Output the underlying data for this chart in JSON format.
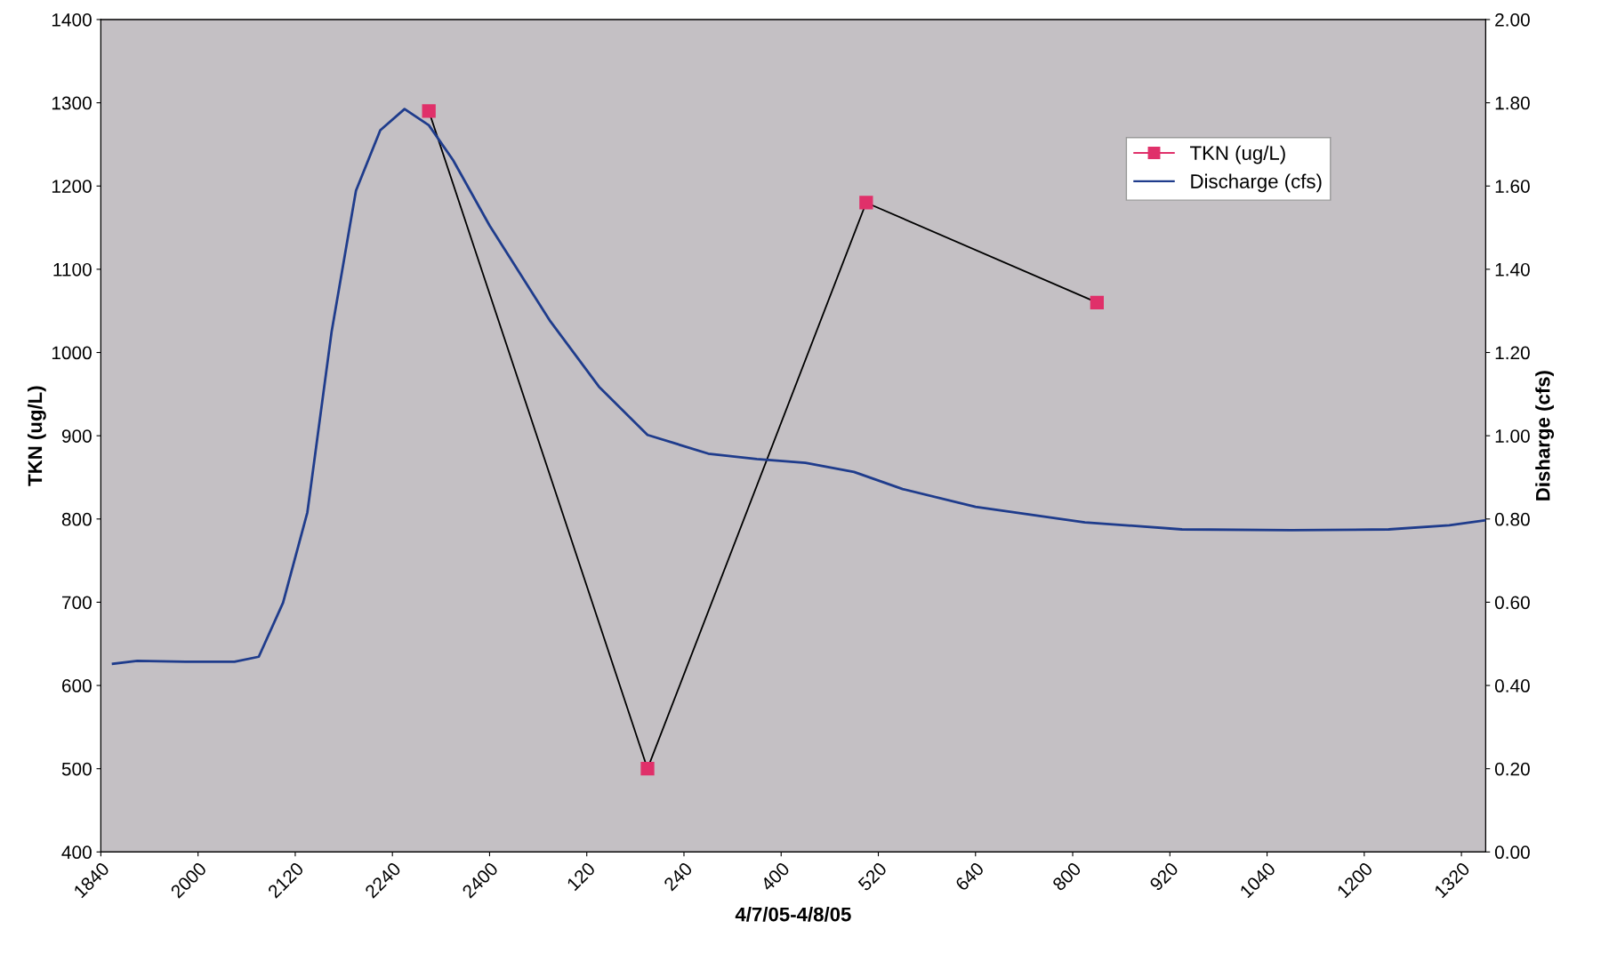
{
  "chart_data": {
    "type": "line",
    "xlabel": "4/7/05-4/8/05",
    "ylabel": "TKN (ug/L)",
    "y2label": "Disharge (cfs)",
    "categories": [
      "1840",
      null,
      null,
      null,
      null,
      null,
      null,
      null,
      "2000",
      null,
      null,
      null,
      null,
      null,
      null,
      null,
      "2120",
      null,
      null,
      null,
      null,
      null,
      null,
      null,
      "2240",
      null,
      null,
      null,
      null,
      null,
      null,
      null,
      "2400",
      null,
      null,
      null,
      null,
      null,
      null,
      null,
      "120",
      null,
      null,
      null,
      null,
      null,
      null,
      null,
      "240",
      null,
      null,
      null,
      null,
      null,
      null,
      null,
      "400",
      null,
      null,
      null,
      null,
      null,
      null,
      null,
      "520",
      null,
      null,
      null,
      null,
      null,
      null,
      null,
      "640",
      null,
      null,
      null,
      null,
      null,
      null,
      null,
      "800",
      null,
      null,
      null,
      null,
      null,
      null,
      null,
      "920",
      null,
      null,
      null,
      null,
      null,
      null,
      null,
      "1040",
      null,
      null,
      null,
      null,
      null,
      null,
      null,
      "1200",
      null,
      null,
      null,
      null,
      null,
      null,
      null,
      "1320",
      null,
      null
    ],
    "ylim": [
      400,
      1400
    ],
    "yticks": [
      400,
      500,
      600,
      700,
      800,
      900,
      1000,
      1100,
      1200,
      1300,
      1400
    ],
    "y2lim": [
      0,
      2
    ],
    "y2ticks": [
      {
        "value": 0,
        "label": "0.00"
      },
      {
        "value": 0.2,
        "label": "0.20"
      },
      {
        "value": 0.4,
        "label": "0.40"
      },
      {
        "value": 0.6,
        "label": "0.60"
      },
      {
        "value": 0.8,
        "label": "0.80"
      },
      {
        "value": 1.0,
        "label": "1.00"
      },
      {
        "value": 1.2,
        "label": "1.20"
      },
      {
        "value": 1.4,
        "label": "1.40"
      },
      {
        "value": 1.6,
        "label": "1.60"
      },
      {
        "value": 1.8,
        "label": "1.80"
      },
      {
        "value": 2.0,
        "label": "2.00"
      }
    ],
    "grid": false,
    "legend": "top right",
    "series": [
      {
        "name": "TKN (ug/L)",
        "color": "#e0306a",
        "marker": "square",
        "values": [
          null,
          null,
          null,
          null,
          null,
          null,
          null,
          null,
          null,
          null,
          null,
          null,
          null,
          null,
          null,
          null,
          null,
          null,
          null,
          null,
          null,
          null,
          null,
          null,
          null,
          null,
          null,
          1290,
          null,
          null,
          null,
          null,
          null,
          null,
          null,
          null,
          null,
          null,
          null,
          null,
          null,
          null,
          null,
          null,
          null,
          500,
          null,
          null,
          null,
          null,
          null,
          null,
          null,
          null,
          null,
          null,
          null,
          null,
          null,
          null,
          null,
          null,
          null,
          1180,
          null,
          null,
          null,
          null,
          null,
          null,
          null,
          null,
          null,
          null,
          null,
          null,
          null,
          null,
          null,
          null,
          null,
          null,
          1060,
          null,
          null,
          null,
          null,
          null,
          null,
          null,
          null,
          null,
          null,
          null,
          null,
          null,
          null,
          null,
          null,
          null,
          null,
          null,
          null,
          null,
          null,
          null,
          null,
          null,
          null,
          null,
          null,
          null,
          null,
          null,
          null
        ]
      },
      {
        "name": "Discharge (cfs)",
        "color": "#1f3c8c",
        "marker": "none",
        "axis": "y2",
        "values": [
          null,
          0.452,
          null,
          0.459,
          null,
          null,
          null,
          0.457,
          null,
          null,
          null,
          0.457,
          null,
          0.469,
          null,
          0.599,
          null,
          0.816,
          null,
          1.251,
          null,
          1.589,
          null,
          1.734,
          null,
          1.785,
          null,
          1.746,
          null,
          1.662,
          null,
          null,
          1.505,
          null,
          null,
          null,
          null,
          1.275,
          null,
          null,
          null,
          1.118,
          null,
          null,
          null,
          1.002,
          null,
          null,
          null,
          null,
          0.957,
          null,
          null,
          null,
          0.944,
          null,
          null,
          null,
          0.935,
          null,
          null,
          null,
          0.913,
          null,
          null,
          null,
          0.872,
          null,
          null,
          null,
          null,
          null,
          0.829,
          null,
          null,
          null,
          null,
          null,
          null,
          null,
          null,
          0.792,
          null,
          null,
          null,
          null,
          null,
          null,
          null,
          0.775,
          null,
          null,
          null,
          null,
          null,
          null,
          null,
          null,
          0.773,
          null,
          null,
          null,
          null,
          null,
          null,
          null,
          0.775,
          null,
          null,
          null,
          null,
          0.785,
          null,
          null,
          0.797
        ]
      }
    ]
  }
}
